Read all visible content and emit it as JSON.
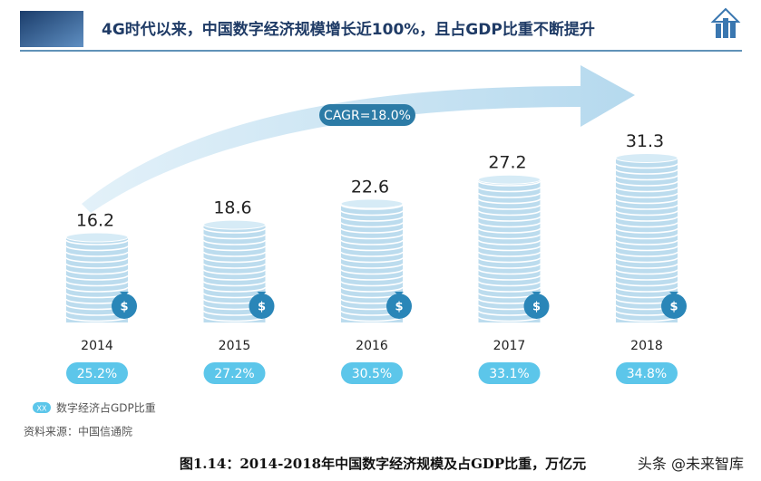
{
  "chart_data": {
    "type": "coin-bar",
    "title": "4G时代以来，中国数字经济规模增长近100%，且占GDP比重不断提升",
    "annotation": "CAGR=18.0%",
    "categories": [
      "2014",
      "2015",
      "2016",
      "2017",
      "2018"
    ],
    "values": [
      16.2,
      18.6,
      22.6,
      27.2,
      31.3
    ],
    "color": "#bcdcee",
    "share": {
      "name": "数字经济占GDP比重",
      "legend_marker": "XX",
      "color": "#5cc6ea",
      "values": [
        25.2,
        27.2,
        30.5,
        33.1,
        34.8
      ],
      "value_labels": [
        "25.2%",
        "27.2%",
        "30.5%",
        "33.1%",
        "34.8%"
      ]
    },
    "source": "资料来源：中国信通院",
    "caption": "图1.14：2014-2018年中国数字经济规模及占GDP比重，万亿元",
    "watermark": "头条 @未来智库"
  }
}
